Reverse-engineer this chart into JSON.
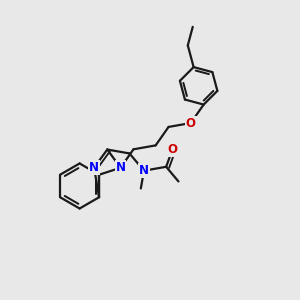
{
  "bg_color": "#e8e8e8",
  "bond_color": "#1a1a1a",
  "N_color": "#0000ff",
  "O_color": "#cc0000",
  "line_width": 1.6,
  "font_size_atom": 8.5,
  "fig_width": 3.0,
  "fig_height": 3.0,
  "dpi": 100,
  "xlim": [
    0.0,
    9.5
  ],
  "ylim": [
    0.0,
    9.5
  ]
}
